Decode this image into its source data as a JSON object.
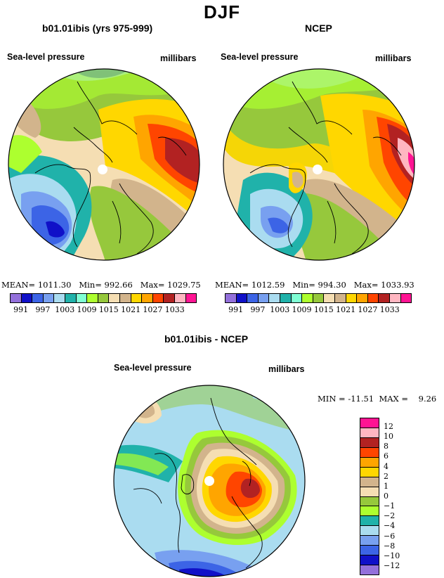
{
  "page_title": "DJF",
  "panels": {
    "left": {
      "title": "b01.01ibis (yrs 975-999)",
      "var_label": "Sea-level pressure",
      "units": "millibars",
      "stats": {
        "mean_label": "MEAN=",
        "mean": "1011.30",
        "min_label": "Min=",
        "min": "992.66",
        "max_label": "Max=",
        "max": "1029.75"
      }
    },
    "right": {
      "title": "NCEP",
      "var_label": "Sea-level pressure",
      "units": "millibars",
      "stats": {
        "mean_label": "MEAN=",
        "mean": "1012.59",
        "min_label": "Min=",
        "min": "994.30",
        "max_label": "Max=",
        "max": "1033.93"
      }
    },
    "diff": {
      "title": "b01.01ibis - NCEP",
      "var_label": "Sea-level pressure",
      "units": "millibars",
      "stats": {
        "min_label": "MIN =",
        "min": "-11.51",
        "max_label": "MAX =",
        "max": "9.26"
      }
    }
  },
  "colorbar_pressure": {
    "colors": [
      "#9370db",
      "#1010c8",
      "#3c64e6",
      "#78a0f0",
      "#aadcf0",
      "#20b2aa",
      "#7fffd4",
      "#adff2f",
      "#96c83c",
      "#f5deb3",
      "#d2b48c",
      "#ffd700",
      "#ffa500",
      "#ff4500",
      "#b22222",
      "#ffb6c1",
      "#ff1493"
    ],
    "labels": [
      "991",
      "997",
      "1003",
      "1009",
      "1015",
      "1021",
      "1027",
      "1033"
    ]
  },
  "colorbar_diff": {
    "colors": [
      "#ff1493",
      "#ffb6c1",
      "#b22222",
      "#ff4500",
      "#ffa500",
      "#ffd700",
      "#d2b48c",
      "#f5deb3",
      "#96c83c",
      "#adff2f",
      "#20b2aa",
      "#aadcf0",
      "#78a0f0",
      "#3c64e6",
      "#1010c8",
      "#9370db"
    ],
    "labels": [
      "12",
      "10",
      "8",
      "6",
      "4",
      "2",
      "1",
      "0",
      "−1",
      "−2",
      "−4",
      "−6",
      "−8",
      "−10",
      "−12"
    ]
  }
}
